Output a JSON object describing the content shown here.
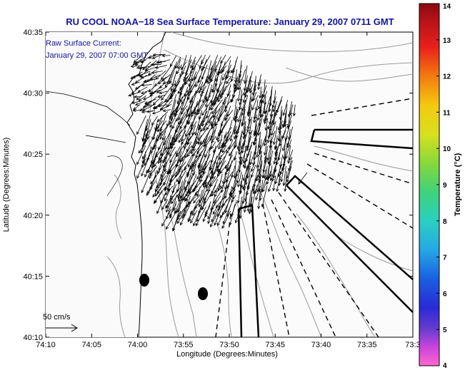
{
  "title": "RU COOL  NOAA−18  Sea Surface Temperature:  January 29, 2007 0711 GMT",
  "inset": {
    "line1": "Raw Surface Current:",
    "line2": "January 29, 2007 07:00 GMT"
  },
  "scale_label": "50 cm/s",
  "x_axis": {
    "label": "Longitude (Degrees:Minutes)",
    "ticks": [
      "74:10",
      "74:05",
      "74:00",
      "73:55",
      "73:50",
      "73:45",
      "73:40",
      "73:35",
      "73:3"
    ]
  },
  "y_axis": {
    "label": "Latitude (Degrees:Minutes)",
    "ticks": [
      "40:35",
      "40:30",
      "40:25",
      "40:20",
      "40:15",
      "40:10"
    ]
  },
  "colorbar": {
    "label": "Temperature (°C)",
    "ticks": [
      "14",
      "13",
      "12",
      "11",
      "10",
      "9",
      "8",
      "7",
      "6",
      "5",
      "4"
    ],
    "min": 4,
    "max": 14
  },
  "colors": {
    "title": "#1414a0",
    "coast": "#000000",
    "bathymetry": "#9a9a9a"
  }
}
